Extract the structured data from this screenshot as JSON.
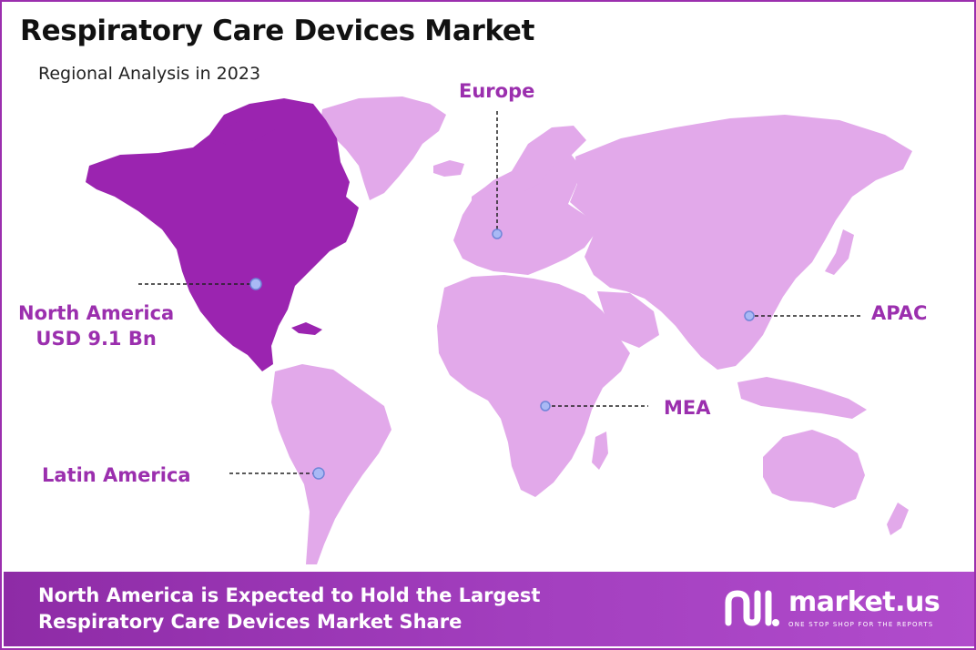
{
  "title": "Respiratory Care Devices Market",
  "subtitle": "Regional Analysis in 2023",
  "regions": {
    "north_america": {
      "name": "North America",
      "value": "USD 9.1 Bn",
      "highlighted": true
    },
    "europe": {
      "name": "Europe"
    },
    "apac": {
      "name": "APAC"
    },
    "mea": {
      "name": "MEA"
    },
    "latin_america": {
      "name": "Latin America"
    }
  },
  "footer": {
    "line1": "North America is Expected to Hold the Largest",
    "line2": "Respiratory Care Devices Market Share"
  },
  "logo": {
    "name": "market.us",
    "tagline": "ONE STOP SHOP FOR THE REPORTS"
  },
  "colors": {
    "highlight": "#9b24b0",
    "land": "#e2a9ea",
    "accent": "#9b2fae",
    "marker": "#a9b9f5"
  }
}
